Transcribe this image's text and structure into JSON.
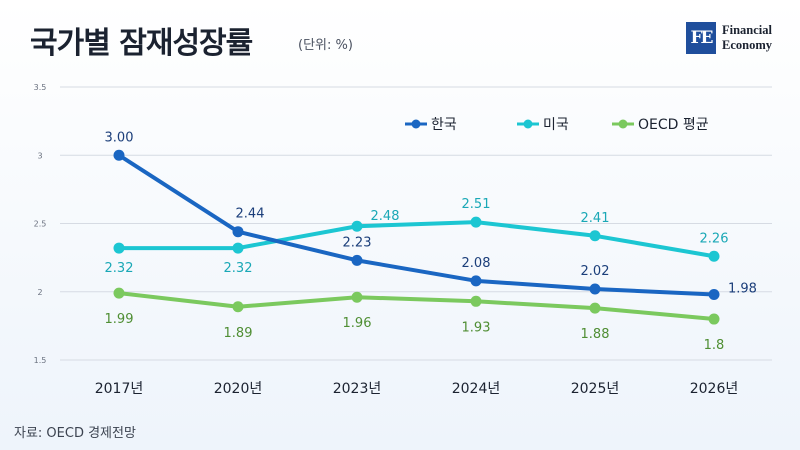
{
  "header": {
    "title": "국가별 잠재성장률",
    "unit": "(단위: %)"
  },
  "logo": {
    "mark": "FE",
    "line1": "Financial",
    "line2": "Economy"
  },
  "source": "자료: OECD 경제전망",
  "chart_data": {
    "type": "line",
    "categories": [
      "2017년",
      "2020년",
      "2023년",
      "2024년",
      "2025년",
      "2026년"
    ],
    "ylim": [
      1.5,
      3.5
    ],
    "yticks": [
      "1.5",
      "2",
      "2.5",
      "3",
      "3.5"
    ],
    "grid": true,
    "legend_position": "top-right",
    "series": [
      {
        "name": "한국",
        "color": "#1a66c2",
        "values": [
          3.0,
          2.44,
          2.23,
          2.08,
          2.02,
          1.98
        ],
        "labels": [
          "3.00",
          "2.44",
          "2.23",
          "2.08",
          "2.02",
          "1.98"
        ]
      },
      {
        "name": "미국",
        "color": "#1cc6d2",
        "values": [
          2.32,
          2.32,
          2.48,
          2.51,
          2.41,
          2.26
        ],
        "labels": [
          "2.32",
          "2.32",
          "2.48",
          "2.51",
          "2.41",
          "2.26"
        ]
      },
      {
        "name": "OECD 평균",
        "color": "#7bc95e",
        "values": [
          1.99,
          1.89,
          1.96,
          1.93,
          1.88,
          1.8
        ],
        "labels": [
          "1.99",
          "1.89",
          "1.96",
          "1.93",
          "1.88",
          "1.8"
        ]
      }
    ]
  }
}
